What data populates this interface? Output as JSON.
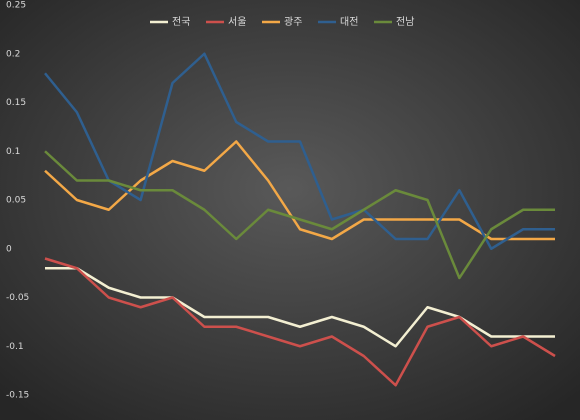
{
  "chart_data": {
    "type": "line",
    "categories": [
      null,
      null,
      null,
      null,
      null,
      null,
      null,
      null,
      null,
      null,
      null,
      null,
      null,
      null,
      null,
      null,
      null
    ],
    "series": [
      {
        "name": "전국",
        "color": "#f3efd2",
        "values": [
          -0.02,
          -0.02,
          -0.04,
          -0.05,
          -0.05,
          -0.07,
          -0.07,
          -0.07,
          -0.08,
          -0.07,
          -0.08,
          -0.1,
          -0.06,
          -0.07,
          -0.09,
          -0.09,
          -0.09
        ]
      },
      {
        "name": "서울",
        "color": "#cd504c",
        "values": [
          -0.01,
          -0.02,
          -0.05,
          -0.06,
          -0.05,
          -0.08,
          -0.08,
          -0.09,
          -0.1,
          -0.09,
          -0.11,
          -0.14,
          -0.08,
          -0.07,
          -0.1,
          -0.09,
          -0.11
        ]
      },
      {
        "name": "광주",
        "color": "#f3a847",
        "values": [
          0.08,
          0.05,
          0.04,
          0.07,
          0.09,
          0.08,
          0.11,
          0.07,
          0.02,
          0.01,
          0.03,
          0.03,
          0.03,
          0.03,
          0.01,
          0.01,
          0.01
        ]
      },
      {
        "name": "대전",
        "color": "#2f5f8f",
        "values": [
          0.18,
          0.14,
          0.07,
          0.05,
          0.17,
          0.2,
          0.13,
          0.11,
          0.11,
          0.03,
          0.04,
          0.01,
          0.01,
          0.06,
          0,
          0.02,
          0.02
        ]
      },
      {
        "name": "전남",
        "color": "#6a8a3b",
        "values": [
          0.1,
          0.07,
          0.07,
          0.06,
          0.06,
          0.04,
          0.01,
          0.04,
          0.03,
          0.02,
          0.04,
          0.06,
          0.05,
          -0.03,
          0.02,
          0.04,
          0.04
        ]
      }
    ],
    "ylim": [
      -0.15,
      0.25
    ],
    "yticks": [
      0.25,
      0.2,
      0.15,
      0.1,
      0.05,
      0,
      -0.05,
      -0.1,
      -0.15
    ],
    "grid": false,
    "legend": "top"
  }
}
